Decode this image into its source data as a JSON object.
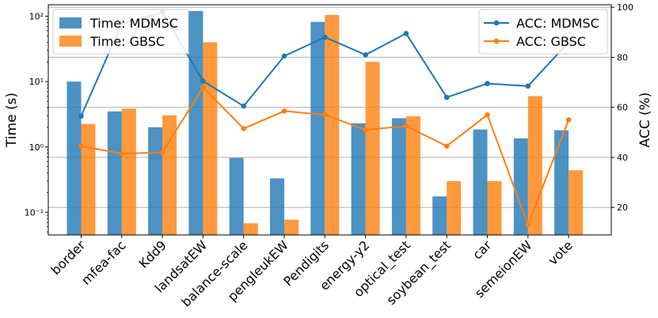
{
  "chart_data": {
    "type": "bar+line",
    "categories": [
      "border",
      "mfea-fac",
      "Kdd9",
      "landsatEW",
      "balance-scale",
      "pengleukEW",
      "Pendigits",
      "energy-y2",
      "optical_test",
      "soybean_test",
      "car",
      "semeionEW",
      "vote"
    ],
    "bar_axis": {
      "label": "Time (s)",
      "scale": "log",
      "ylim": [
        0.045,
        150
      ],
      "ticks": [
        0.1,
        1,
        10,
        100
      ],
      "tick_labels": [
        "10⁻¹",
        "10⁰",
        "10¹",
        "10²"
      ]
    },
    "line_axis": {
      "label": "ACC (%)",
      "scale": "linear",
      "ylim": [
        9,
        101
      ],
      "ticks": [
        20,
        40,
        60,
        80,
        100
      ],
      "tick_labels": [
        "20",
        "40",
        "60",
        "80",
        "100"
      ]
    },
    "bar_series": [
      {
        "name": "Time: MDMSC",
        "color": "#1f77b4",
        "values": [
          10,
          3.5,
          2.0,
          120,
          0.68,
          0.33,
          82,
          2.3,
          2.75,
          0.175,
          1.85,
          1.35,
          1.8
        ]
      },
      {
        "name": "Time: GBSC",
        "color": "#ff7f0e",
        "values": [
          2.25,
          3.85,
          3.05,
          40,
          0.068,
          0.077,
          105,
          20,
          2.95,
          0.3,
          0.3,
          6.0,
          0.44
        ]
      }
    ],
    "line_series": [
      {
        "name": "ACC: MDMSC",
        "color": "#1f77b4",
        "values": [
          56.5,
          93.5,
          98,
          70.5,
          60.5,
          80.5,
          88,
          81,
          89.5,
          64,
          69.5,
          68.5,
          86
        ]
      },
      {
        "name": "ACC: GBSC",
        "color": "#ff7f0e",
        "values": [
          44.5,
          41.5,
          42,
          68,
          51.5,
          58.5,
          57,
          51,
          52.5,
          44.5,
          57,
          13,
          55
        ]
      }
    ],
    "grid": "horizontal (right axis)",
    "legend_left": "upper-left",
    "legend_right": "upper-right"
  }
}
